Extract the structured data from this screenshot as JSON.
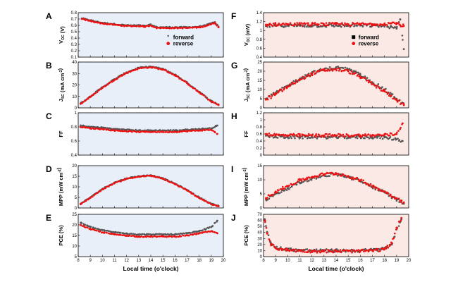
{
  "figure": {
    "xlabel": "Local time (o'clock)",
    "colors": {
      "forward": "#555555",
      "reverse": "#ee1111",
      "left_bg": "#e9eff8",
      "right_bg": "#fbe9e6"
    }
  },
  "chart_data": [
    {
      "type": "scatter",
      "label": "A",
      "ylabel": "V_OC (V)",
      "xlim": [
        8,
        20
      ],
      "ylim": [
        0.1,
        0.8
      ],
      "yticks": [
        0.1,
        0.2,
        0.3,
        0.4,
        0.5,
        0.6,
        0.7,
        0.8
      ],
      "xticks": [
        8,
        9,
        10,
        11,
        12,
        13,
        14,
        15,
        16,
        17,
        18,
        19,
        20
      ],
      "show_xtick_labels": false,
      "legend": {
        "position": "center-right",
        "entries": [
          "forward",
          "reverse"
        ]
      },
      "series": [
        {
          "name": "forward",
          "x": [
            8.3,
            9,
            10,
            11,
            12,
            13,
            13.5,
            14,
            14.5,
            15,
            16,
            17,
            18,
            18.5,
            19,
            19.3,
            19.6
          ],
          "y": [
            0.71,
            0.68,
            0.64,
            0.62,
            0.6,
            0.6,
            0.59,
            0.61,
            0.57,
            0.57,
            0.57,
            0.57,
            0.58,
            0.6,
            0.63,
            0.65,
            0.58
          ]
        },
        {
          "name": "reverse",
          "x": [
            8.3,
            9,
            10,
            11,
            12,
            13,
            13.5,
            14,
            14.5,
            15,
            16,
            17,
            18,
            18.5,
            19,
            19.3,
            19.6
          ],
          "y": [
            0.7,
            0.67,
            0.63,
            0.61,
            0.59,
            0.59,
            0.58,
            0.6,
            0.56,
            0.56,
            0.56,
            0.56,
            0.57,
            0.59,
            0.62,
            0.64,
            0.57
          ]
        }
      ]
    },
    {
      "type": "scatter",
      "label": "B",
      "ylabel": "J_SC (mA cm^-2)",
      "xlim": [
        8,
        20
      ],
      "ylim": [
        0,
        40
      ],
      "yticks": [
        0,
        10,
        20,
        30,
        40
      ],
      "xticks": [
        8,
        9,
        10,
        11,
        12,
        13,
        14,
        15,
        16,
        17,
        18,
        19,
        20
      ],
      "show_xtick_labels": false,
      "series": [
        {
          "name": "forward",
          "x": [
            8.2,
            9,
            10,
            11,
            12,
            13,
            14,
            15,
            16,
            17,
            18,
            19,
            19.6
          ],
          "y": [
            4,
            10,
            18,
            25,
            31,
            35,
            36,
            34,
            29,
            22,
            14,
            6,
            3
          ]
        },
        {
          "name": "reverse",
          "x": [
            8.2,
            9,
            10,
            11,
            12,
            13,
            14,
            15,
            16,
            17,
            18,
            19,
            19.6
          ],
          "y": [
            3.5,
            9.5,
            17.5,
            24.5,
            30.5,
            34.5,
            35.5,
            33.5,
            28.5,
            21.5,
            13.5,
            5.5,
            2.5
          ]
        }
      ]
    },
    {
      "type": "scatter",
      "label": "C",
      "ylabel": "FF",
      "xlim": [
        8,
        20
      ],
      "ylim": [
        0.4,
        1.0
      ],
      "yticks": [
        0.4,
        0.6,
        0.8,
        1.0
      ],
      "xticks": [
        8,
        9,
        10,
        11,
        12,
        13,
        14,
        15,
        16,
        17,
        18,
        19,
        20
      ],
      "show_xtick_labels": false,
      "series": [
        {
          "name": "forward",
          "x": [
            8.2,
            9,
            10,
            11,
            12,
            13,
            14,
            15,
            16,
            17,
            18,
            19,
            19.5
          ],
          "y": [
            0.82,
            0.8,
            0.79,
            0.77,
            0.76,
            0.75,
            0.75,
            0.75,
            0.75,
            0.76,
            0.77,
            0.78,
            0.82
          ]
        },
        {
          "name": "reverse",
          "x": [
            8.2,
            9,
            10,
            11,
            12,
            13,
            14,
            15,
            16,
            17,
            18,
            19,
            19.5
          ],
          "y": [
            0.8,
            0.78,
            0.77,
            0.75,
            0.74,
            0.73,
            0.73,
            0.73,
            0.73,
            0.74,
            0.75,
            0.76,
            0.7
          ]
        }
      ]
    },
    {
      "type": "scatter",
      "label": "D",
      "ylabel": "MPP (mW cm^-2)",
      "xlim": [
        8,
        20
      ],
      "ylim": [
        0,
        20
      ],
      "yticks": [
        0,
        5,
        10,
        15,
        20
      ],
      "xticks": [
        8,
        9,
        10,
        11,
        12,
        13,
        14,
        15,
        16,
        17,
        18,
        19,
        20
      ],
      "show_xtick_labels": false,
      "series": [
        {
          "name": "forward",
          "x": [
            8.2,
            9,
            10,
            11,
            12,
            13,
            14,
            15,
            16,
            17,
            18,
            19,
            19.6
          ],
          "y": [
            2,
            5,
            9,
            12,
            14,
            15,
            15.5,
            14,
            11.5,
            8.5,
            5,
            2,
            1
          ]
        },
        {
          "name": "reverse",
          "x": [
            8.2,
            9,
            10,
            11,
            12,
            13,
            14,
            15,
            16,
            17,
            18,
            19,
            19.6
          ],
          "y": [
            1.8,
            4.8,
            8.8,
            11.8,
            13.8,
            14.8,
            15.3,
            13.8,
            11.3,
            8.3,
            4.8,
            1.8,
            0.8
          ]
        }
      ]
    },
    {
      "type": "scatter",
      "label": "E",
      "ylabel": "PCE (%)",
      "xlim": [
        8,
        20
      ],
      "ylim": [
        5,
        25
      ],
      "yticks": [
        5,
        10,
        15,
        20,
        25
      ],
      "xticks": [
        8,
        9,
        10,
        11,
        12,
        13,
        14,
        15,
        16,
        17,
        18,
        19,
        20
      ],
      "show_xtick_labels": true,
      "series": [
        {
          "name": "forward",
          "x": [
            8.2,
            9,
            10,
            11,
            12,
            13,
            14,
            15,
            16,
            17,
            18,
            19,
            19.5
          ],
          "y": [
            21,
            19,
            17.5,
            16.5,
            16,
            15.5,
            15.5,
            15.5,
            15.5,
            16,
            17,
            19,
            22
          ]
        },
        {
          "name": "reverse",
          "x": [
            8.2,
            9,
            10,
            11,
            12,
            13,
            14,
            15,
            16,
            17,
            18,
            19,
            19.5
          ],
          "y": [
            20,
            18,
            16.5,
            15.5,
            15,
            14.5,
            14.5,
            14.5,
            14.5,
            15,
            16,
            17,
            16
          ]
        }
      ]
    },
    {
      "type": "scatter",
      "label": "F",
      "ylabel": "V_OC (mV)",
      "xlim": [
        8,
        20
      ],
      "ylim": [
        0.4,
        1.4
      ],
      "yticks": [
        0.4,
        0.6,
        0.8,
        1.0,
        1.2,
        1.4
      ],
      "xticks": [
        8,
        9,
        10,
        11,
        12,
        13,
        14,
        15,
        16,
        17,
        18,
        19,
        20
      ],
      "show_xtick_labels": false,
      "legend": {
        "position": "center-right",
        "entries": [
          "forward",
          "reverse"
        ]
      },
      "series": [
        {
          "name": "forward",
          "x": [
            8.2,
            9,
            10,
            11,
            12,
            13,
            14,
            15,
            16,
            17,
            18,
            18.5,
            19,
            19.3,
            19.6
          ],
          "y": [
            1.1,
            1.11,
            1.11,
            1.11,
            1.11,
            1.11,
            1.11,
            1.11,
            1.11,
            1.11,
            1.1,
            1.08,
            1.04,
            1.25,
            0.58
          ]
        },
        {
          "name": "reverse",
          "x": [
            8.2,
            9,
            10,
            11,
            12,
            13,
            14,
            15,
            16,
            17,
            18,
            18.5,
            19,
            19.3,
            19.6
          ],
          "y": [
            1.13,
            1.14,
            1.14,
            1.14,
            1.14,
            1.14,
            1.14,
            1.14,
            1.14,
            1.14,
            1.15,
            1.16,
            1.17,
            1.12,
            1.1
          ]
        }
      ]
    },
    {
      "type": "scatter",
      "label": "G",
      "ylabel": "J_SC (mA cm^-2)",
      "xlim": [
        8,
        20
      ],
      "ylim": [
        0,
        25
      ],
      "yticks": [
        0,
        5,
        10,
        15,
        20,
        25
      ],
      "xticks": [
        8,
        9,
        10,
        11,
        12,
        13,
        14,
        15,
        16,
        17,
        18,
        19,
        20
      ],
      "show_xtick_labels": false,
      "series": [
        {
          "name": "forward",
          "x": [
            8.2,
            9,
            10,
            11,
            12,
            13,
            14,
            15,
            16,
            17,
            18,
            19,
            19.6
          ],
          "y": [
            5,
            8,
            12,
            16,
            19,
            21,
            22,
            21,
            18,
            14,
            10,
            5,
            2
          ]
        },
        {
          "name": "reverse",
          "x": [
            8.2,
            9,
            10,
            11,
            12,
            13,
            14,
            15,
            16,
            17,
            18,
            19,
            19.6
          ],
          "y": [
            4.5,
            7.5,
            11.5,
            15.5,
            18.5,
            20.5,
            21,
            20,
            17,
            13,
            9,
            4.5,
            1.5
          ]
        }
      ]
    },
    {
      "type": "scatter",
      "label": "H",
      "ylabel": "FF",
      "xlim": [
        8,
        20
      ],
      "ylim": [
        0,
        1.2
      ],
      "yticks": [
        0,
        0.2,
        0.4,
        0.6,
        0.8,
        1.0,
        1.2
      ],
      "xticks": [
        8,
        9,
        10,
        11,
        12,
        13,
        14,
        15,
        16,
        17,
        18,
        19,
        20
      ],
      "show_xtick_labels": false,
      "series": [
        {
          "name": "forward",
          "x": [
            8.2,
            9,
            10,
            11,
            12,
            13,
            14,
            15,
            16,
            17,
            18,
            19,
            19.5
          ],
          "y": [
            0.55,
            0.52,
            0.51,
            0.51,
            0.51,
            0.51,
            0.51,
            0.51,
            0.51,
            0.51,
            0.5,
            0.45,
            0.4
          ]
        },
        {
          "name": "reverse",
          "x": [
            8.2,
            9,
            10,
            11,
            12,
            13,
            14,
            15,
            16,
            17,
            18,
            19,
            19.5
          ],
          "y": [
            0.6,
            0.57,
            0.56,
            0.56,
            0.56,
            0.56,
            0.56,
            0.56,
            0.56,
            0.56,
            0.57,
            0.6,
            0.9
          ]
        }
      ]
    },
    {
      "type": "scatter",
      "label": "I",
      "ylabel": "MPP (mW cm^-2)",
      "xlim": [
        8,
        20
      ],
      "ylim": [
        0,
        15
      ],
      "yticks": [
        0,
        5,
        10,
        15
      ],
      "xticks": [
        8,
        9,
        10,
        11,
        12,
        13,
        14,
        15,
        16,
        17,
        18,
        19,
        20
      ],
      "show_xtick_labels": false,
      "series": [
        {
          "name": "forward",
          "x": [
            8.2,
            9,
            10,
            11,
            12,
            13,
            14,
            15,
            16,
            17,
            18,
            19,
            19.6
          ],
          "y": [
            3,
            5,
            7,
            9,
            10.5,
            11.5,
            12,
            11,
            9.5,
            7.5,
            5.5,
            3,
            1.5
          ]
        },
        {
          "name": "reverse",
          "x": [
            8.2,
            9,
            10,
            11,
            12,
            13,
            14,
            15,
            16,
            17,
            18,
            19,
            19.6
          ],
          "y": [
            3.5,
            5.8,
            7.8,
            9.8,
            11,
            12,
            12.3,
            11.3,
            9.8,
            7.8,
            5.8,
            3.5,
            2
          ]
        }
      ]
    },
    {
      "type": "scatter",
      "label": "J",
      "ylabel": "PCE (%)",
      "xlim": [
        8,
        20
      ],
      "ylim": [
        0,
        70
      ],
      "yticks": [
        0,
        10,
        20,
        30,
        40,
        50,
        60,
        70
      ],
      "xticks": [
        8,
        9,
        10,
        11,
        12,
        13,
        14,
        15,
        16,
        17,
        18,
        19,
        20
      ],
      "show_xtick_labels": true,
      "series": [
        {
          "name": "forward",
          "x": [
            8.1,
            8.3,
            8.6,
            9,
            10,
            11,
            12,
            13,
            14,
            15,
            16,
            17,
            18,
            18.6,
            19,
            19.4
          ],
          "y": [
            62,
            40,
            22,
            15,
            12,
            11,
            10,
            10,
            10,
            10,
            10,
            11,
            13,
            20,
            45,
            62
          ]
        },
        {
          "name": "reverse",
          "x": [
            8.1,
            8.3,
            8.6,
            9,
            10,
            11,
            12,
            13,
            14,
            15,
            16,
            17,
            18,
            18.6,
            19,
            19.4
          ],
          "y": [
            60,
            38,
            21,
            14,
            11,
            10,
            9,
            9,
            9,
            9,
            9,
            10,
            12,
            22,
            48,
            64
          ]
        }
      ]
    }
  ]
}
